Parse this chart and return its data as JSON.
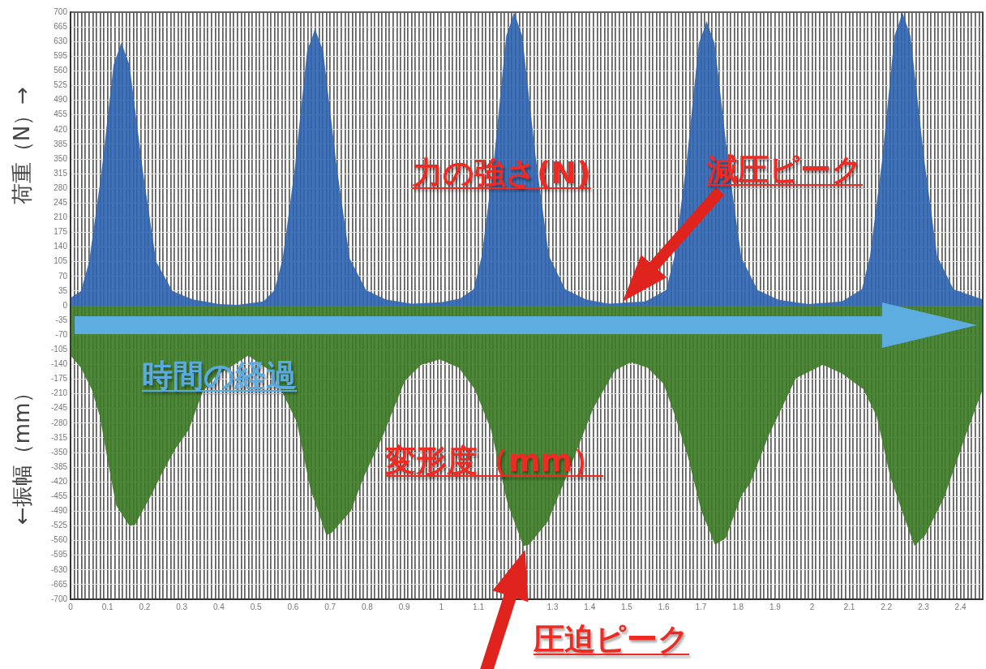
{
  "chart_data": {
    "type": "area",
    "ylabel": "←振幅（mm） 荷重（N）→",
    "xlim": [
      0,
      2.46
    ],
    "ylim": [
      -700,
      700
    ],
    "yticks": [
      -700,
      -665,
      -630,
      -595,
      -560,
      -525,
      -490,
      -455,
      -420,
      -385,
      -350,
      -315,
      -280,
      -245,
      -210,
      -175,
      -140,
      -105,
      -70,
      -35,
      0,
      35,
      70,
      105,
      140,
      175,
      210,
      245,
      280,
      315,
      350,
      385,
      420,
      455,
      490,
      525,
      560,
      595,
      630,
      665,
      700
    ],
    "xticks": [
      0,
      {
        "value": 0.01,
        "label": null
      },
      {
        "value": 0.02,
        "label": null
      },
      {
        "value": 0.03,
        "label": null
      },
      {
        "value": 0.04,
        "label": null
      },
      {
        "value": 0.05,
        "label": null
      },
      {
        "value": 0.06,
        "label": null
      },
      {
        "value": 0.07,
        "label": null
      },
      {
        "value": 0.08,
        "label": null
      },
      {
        "value": 0.09,
        "label": null
      },
      0.1,
      {
        "value": 0.11,
        "label": null
      },
      {
        "value": 0.12,
        "label": null
      },
      {
        "value": 0.13,
        "label": null
      },
      {
        "value": 0.14,
        "label": null
      },
      {
        "value": 0.15,
        "label": null
      },
      {
        "value": 0.16,
        "label": null
      },
      {
        "value": 0.17,
        "label": null
      },
      {
        "value": 0.18,
        "label": null
      },
      {
        "value": 0.19,
        "label": null
      },
      0.2,
      {
        "value": 0.21,
        "label": null
      },
      {
        "value": 0.22,
        "label": null
      },
      {
        "value": 0.23,
        "label": null
      },
      {
        "value": 0.24,
        "label": null
      },
      {
        "value": 0.25,
        "label": null
      },
      {
        "value": 0.26,
        "label": null
      },
      {
        "value": 0.27,
        "label": null
      },
      {
        "value": 0.28,
        "label": null
      },
      {
        "value": 0.29,
        "label": null
      },
      0.3,
      {
        "value": 0.31,
        "label": null
      },
      {
        "value": 0.32,
        "label": null
      },
      {
        "value": 0.33,
        "label": null
      },
      {
        "value": 0.34,
        "label": null
      },
      {
        "value": 0.35,
        "label": null
      },
      {
        "value": 0.36,
        "label": null
      },
      {
        "value": 0.37,
        "label": null
      },
      {
        "value": 0.38,
        "label": null
      },
      {
        "value": 0.39,
        "label": null
      },
      0.4,
      {
        "value": 0.41,
        "label": null
      },
      {
        "value": 0.42,
        "label": null
      },
      {
        "value": 0.43,
        "label": null
      },
      {
        "value": 0.44,
        "label": null
      },
      {
        "value": 0.45,
        "label": null
      },
      {
        "value": 0.46,
        "label": null
      },
      {
        "value": 0.47,
        "label": null
      },
      {
        "value": 0.48,
        "label": null
      },
      {
        "value": 0.49,
        "label": null
      },
      0.5,
      {
        "value": 0.51,
        "label": null
      },
      {
        "value": 0.52,
        "label": null
      },
      {
        "value": 0.53,
        "label": null
      },
      {
        "value": 0.54,
        "label": null
      },
      {
        "value": 0.55,
        "label": null
      },
      {
        "value": 0.56,
        "label": null
      },
      {
        "value": 0.57,
        "label": null
      },
      {
        "value": 0.58,
        "label": null
      },
      {
        "value": 0.59,
        "label": null
      },
      0.6,
      {
        "value": 0.61,
        "label": null
      },
      {
        "value": 0.62,
        "label": null
      },
      {
        "value": 0.63,
        "label": null
      },
      {
        "value": 0.64,
        "label": null
      },
      {
        "value": 0.65,
        "label": null
      },
      {
        "value": 0.66,
        "label": null
      },
      {
        "value": 0.67,
        "label": null
      },
      {
        "value": 0.68,
        "label": null
      },
      {
        "value": 0.69,
        "label": null
      },
      0.7,
      {
        "value": 0.71,
        "label": null
      },
      {
        "value": 0.72,
        "label": null
      },
      {
        "value": 0.73,
        "label": null
      },
      {
        "value": 0.74,
        "label": null
      },
      {
        "value": 0.75,
        "label": null
      },
      {
        "value": 0.76,
        "label": null
      },
      {
        "value": 0.77,
        "label": null
      },
      {
        "value": 0.78,
        "label": null
      },
      {
        "value": 0.79,
        "label": null
      },
      0.8,
      {
        "value": 0.81,
        "label": null
      },
      {
        "value": 0.82,
        "label": null
      },
      {
        "value": 0.83,
        "label": null
      },
      {
        "value": 0.84,
        "label": null
      },
      {
        "value": 0.85,
        "label": null
      },
      {
        "value": 0.86,
        "label": null
      },
      {
        "value": 0.87,
        "label": null
      },
      {
        "value": 0.88,
        "label": null
      },
      {
        "value": 0.89,
        "label": null
      },
      0.9,
      {
        "value": 0.91,
        "label": null
      },
      {
        "value": 0.92,
        "label": null
      },
      {
        "value": 0.93,
        "label": null
      },
      {
        "value": 0.94,
        "label": null
      },
      {
        "value": 0.95,
        "label": null
      },
      {
        "value": 0.96,
        "label": null
      },
      {
        "value": 0.97,
        "label": null
      },
      {
        "value": 0.98,
        "label": null
      },
      {
        "value": 0.99,
        "label": null
      },
      1,
      {
        "value": 1.01,
        "label": null
      },
      {
        "value": 1.02,
        "label": null
      },
      {
        "value": 1.03,
        "label": null
      },
      {
        "value": 1.04,
        "label": null
      },
      {
        "value": 1.05,
        "label": null
      },
      {
        "value": 1.06,
        "label": null
      },
      {
        "value": 1.07,
        "label": null
      },
      {
        "value": 1.08,
        "label": null
      },
      {
        "value": 1.09,
        "label": null
      },
      1.1,
      {
        "value": 1.11,
        "label": null
      },
      {
        "value": 1.12,
        "label": null
      },
      {
        "value": 1.13,
        "label": null
      },
      {
        "value": 1.14,
        "label": null
      },
      {
        "value": 1.15,
        "label": null
      },
      {
        "value": 1.16,
        "label": null
      },
      {
        "value": 1.17,
        "label": null
      },
      {
        "value": 1.18,
        "label": null
      },
      {
        "value": 1.19,
        "label": null
      },
      {
        "value": 1.2,
        "label": null
      },
      {
        "value": 1.21,
        "label": null
      },
      {
        "value": 1.22,
        "label": null
      },
      {
        "value": 1.23,
        "label": null
      },
      {
        "value": 1.24,
        "label": null
      },
      {
        "value": 1.25,
        "label": null
      },
      {
        "value": 1.26,
        "label": null
      },
      {
        "value": 1.27,
        "label": null
      },
      {
        "value": 1.28,
        "label": null
      },
      {
        "value": 1.29,
        "label": null
      },
      1.3,
      {
        "value": 1.31,
        "label": null
      },
      {
        "value": 1.32,
        "label": null
      },
      {
        "value": 1.33,
        "label": null
      },
      {
        "value": 1.34,
        "label": null
      },
      {
        "value": 1.35,
        "label": null
      },
      {
        "value": 1.36,
        "label": null
      },
      {
        "value": 1.37,
        "label": null
      },
      {
        "value": 1.38,
        "label": null
      },
      {
        "value": 1.39,
        "label": null
      },
      1.4,
      {
        "value": 1.41,
        "label": null
      },
      {
        "value": 1.42,
        "label": null
      },
      {
        "value": 1.43,
        "label": null
      },
      {
        "value": 1.44,
        "label": null
      },
      {
        "value": 1.45,
        "label": null
      },
      {
        "value": 1.46,
        "label": null
      },
      {
        "value": 1.47,
        "label": null
      },
      {
        "value": 1.48,
        "label": null
      },
      {
        "value": 1.49,
        "label": null
      },
      1.5,
      {
        "value": 1.51,
        "label": null
      },
      {
        "value": 1.52,
        "label": null
      },
      {
        "value": 1.53,
        "label": null
      },
      {
        "value": 1.54,
        "label": null
      },
      {
        "value": 1.55,
        "label": null
      },
      {
        "value": 1.56,
        "label": null
      },
      {
        "value": 1.57,
        "label": null
      },
      {
        "value": 1.58,
        "label": null
      },
      {
        "value": 1.59,
        "label": null
      },
      1.6,
      {
        "value": 1.61,
        "label": null
      },
      {
        "value": 1.62,
        "label": null
      },
      {
        "value": 1.63,
        "label": null
      },
      {
        "value": 1.64,
        "label": null
      },
      {
        "value": 1.65,
        "label": null
      },
      {
        "value": 1.66,
        "label": null
      },
      {
        "value": 1.67,
        "label": null
      },
      {
        "value": 1.68,
        "label": null
      },
      {
        "value": 1.69,
        "label": null
      },
      1.7,
      {
        "value": 1.71,
        "label": null
      },
      {
        "value": 1.72,
        "label": null
      },
      {
        "value": 1.73,
        "label": null
      },
      {
        "value": 1.74,
        "label": null
      },
      {
        "value": 1.75,
        "label": null
      },
      {
        "value": 1.76,
        "label": null
      },
      {
        "value": 1.77,
        "label": null
      },
      {
        "value": 1.78,
        "label": null
      },
      {
        "value": 1.79,
        "label": null
      },
      1.8,
      {
        "value": 1.81,
        "label": null
      },
      {
        "value": 1.82,
        "label": null
      },
      {
        "value": 1.83,
        "label": null
      },
      {
        "value": 1.84,
        "label": null
      },
      {
        "value": 1.85,
        "label": null
      },
      {
        "value": 1.86,
        "label": null
      },
      {
        "value": 1.87,
        "label": null
      },
      {
        "value": 1.88,
        "label": null
      },
      {
        "value": 1.89,
        "label": null
      },
      1.9,
      {
        "value": 1.91,
        "label": null
      },
      {
        "value": 1.92,
        "label": null
      },
      {
        "value": 1.93,
        "label": null
      },
      {
        "value": 1.94,
        "label": null
      },
      {
        "value": 1.95,
        "label": null
      },
      {
        "value": 1.96,
        "label": null
      },
      {
        "value": 1.97,
        "label": null
      },
      {
        "value": 1.98,
        "label": null
      },
      {
        "value": 1.99,
        "label": null
      },
      2,
      {
        "value": 2.01,
        "label": null
      },
      {
        "value": 2.02,
        "label": null
      },
      {
        "value": 2.03,
        "label": null
      },
      {
        "value": 2.04,
        "label": null
      },
      {
        "value": 2.05,
        "label": null
      },
      {
        "value": 2.06,
        "label": null
      },
      {
        "value": 2.07,
        "label": null
      },
      {
        "value": 2.08,
        "label": null
      },
      {
        "value": 2.09,
        "label": null
      },
      2.1,
      {
        "value": 2.11,
        "label": null
      },
      {
        "value": 2.12,
        "label": null
      },
      {
        "value": 2.13,
        "label": null
      },
      {
        "value": 2.14,
        "label": null
      },
      {
        "value": 2.15,
        "label": null
      },
      {
        "value": 2.16,
        "label": null
      },
      {
        "value": 2.17,
        "label": null
      },
      {
        "value": 2.18,
        "label": null
      },
      {
        "value": 2.19,
        "label": null
      },
      2.2,
      {
        "value": 2.21,
        "label": null
      },
      {
        "value": 2.22,
        "label": null
      },
      {
        "value": 2.23,
        "label": null
      },
      {
        "value": 2.24,
        "label": null
      },
      {
        "value": 2.25,
        "label": null
      },
      {
        "value": 2.26,
        "label": null
      },
      {
        "value": 2.27,
        "label": null
      },
      {
        "value": 2.28,
        "label": null
      },
      {
        "value": 2.29,
        "label": null
      },
      2.3,
      {
        "value": 2.31,
        "label": null
      },
      {
        "value": 2.32,
        "label": null
      },
      {
        "value": 2.33,
        "label": null
      },
      {
        "value": 2.34,
        "label": null
      },
      {
        "value": 2.35,
        "label": null
      },
      {
        "value": 2.36,
        "label": null
      },
      {
        "value": 2.37,
        "label": null
      },
      {
        "value": 2.38,
        "label": null
      },
      {
        "value": 2.39,
        "label": null
      },
      2.4,
      {
        "value": 2.41,
        "label": null
      },
      {
        "value": 2.42,
        "label": null
      },
      {
        "value": 2.43,
        "label": null
      },
      {
        "value": 2.44,
        "label": null
      },
      {
        "value": 2.45,
        "label": null
      },
      {
        "value": 2.46,
        "label": null
      }
    ],
    "grid": true,
    "series": [
      {
        "color": "#2e64b0",
        "x": [
          0,
          0.028,
          0.05,
          0.083,
          0.116,
          0.13,
          0.137,
          0.159,
          0.196,
          0.231,
          0.275,
          0.33,
          0.4,
          0.45,
          0.52,
          0.55,
          0.572,
          0.605,
          0.638,
          0.652,
          0.659,
          0.681,
          0.718,
          0.753,
          0.797,
          0.85,
          0.92,
          1.0,
          1.05,
          1.087,
          1.109,
          1.142,
          1.175,
          1.189,
          1.196,
          1.218,
          1.255,
          1.29,
          1.334,
          1.39,
          1.45,
          1.55,
          1.606,
          1.628,
          1.661,
          1.694,
          1.708,
          1.715,
          1.737,
          1.774,
          1.809,
          1.853,
          1.91,
          1.99,
          2.08,
          2.134,
          2.156,
          2.189,
          2.222,
          2.236,
          2.243,
          2.265,
          2.302,
          2.337,
          2.381,
          2.46
        ],
        "values": [
          19,
          35,
          105,
          315,
          574,
          610,
          627,
          574,
          315,
          105,
          35,
          15,
          4,
          2,
          10,
          37,
          112,
          330,
          608,
          641,
          661,
          608,
          330,
          112,
          37,
          15,
          5,
          8,
          17,
          39,
          119,
          350,
          644,
          679,
          700,
          644,
          350,
          119,
          39,
          15,
          5,
          10,
          37,
          115,
          340,
          625,
          659,
          679,
          625,
          340,
          115,
          37,
          14,
          4,
          10,
          39,
          119,
          350,
          644,
          679,
          700,
          644,
          350,
          119,
          39,
          15
        ]
      },
      {
        "color": "#3b7a23",
        "x": [
          0,
          0.028,
          0.057,
          0.079,
          0.101,
          0.123,
          0.159,
          0.174,
          0.218,
          0.247,
          0.283,
          0.319,
          0.356,
          0.392,
          0.428,
          0.479,
          0.537,
          0.567,
          0.61,
          0.647,
          0.69,
          0.705,
          0.756,
          0.792,
          0.843,
          0.901,
          0.945,
          0.996,
          1.047,
          1.09,
          1.134,
          1.178,
          1.221,
          1.236,
          1.287,
          1.338,
          1.41,
          1.468,
          1.512,
          1.556,
          1.599,
          1.628,
          1.665,
          1.701,
          1.738,
          1.767,
          1.81,
          1.832,
          1.883,
          1.956,
          2.028,
          2.079,
          2.138,
          2.174,
          2.21,
          2.247,
          2.276,
          2.305,
          2.356,
          2.414,
          2.46
        ],
        "values": [
          -119,
          -148,
          -199,
          -264,
          -373,
          -476,
          -525,
          -522,
          -451,
          -399,
          -341,
          -296,
          -206,
          -167,
          -148,
          -119,
          -154,
          -199,
          -277,
          -438,
          -547,
          -541,
          -489,
          -406,
          -309,
          -180,
          -141,
          -128,
          -148,
          -199,
          -296,
          -470,
          -573,
          -570,
          -515,
          -406,
          -244,
          -154,
          -135,
          -148,
          -186,
          -257,
          -360,
          -489,
          -570,
          -554,
          -451,
          -425,
          -309,
          -173,
          -141,
          -161,
          -199,
          -264,
          -406,
          -502,
          -573,
          -547,
          -457,
          -309,
          -199
        ]
      }
    ],
    "annotations": [
      "力の強さ(N)",
      "減圧ピーク",
      "時間の経過",
      "変形度（mm）",
      "圧迫ピーク"
    ]
  }
}
